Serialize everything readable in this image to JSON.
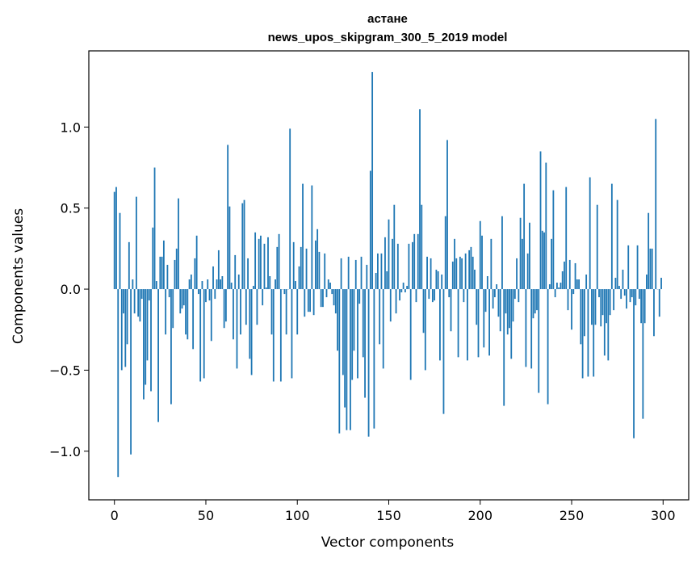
{
  "chart_data": {
    "type": "bar",
    "title": "астане",
    "subtitle": "news_upos_skipgram_300_5_2019 model",
    "xlabel": "Vector components",
    "ylabel": "Components values",
    "xlim": [
      -14,
      314
    ],
    "ylim": [
      -1.3,
      1.47
    ],
    "xticks": [
      0,
      50,
      100,
      150,
      200,
      250,
      300
    ],
    "xtick_labels": [
      "0",
      "50",
      "100",
      "150",
      "200",
      "250",
      "300"
    ],
    "yticks": [
      -1.0,
      -0.5,
      0.0,
      0.5,
      1.0
    ],
    "ytick_labels": [
      "−1.0",
      "−0.5",
      "0.0",
      "0.5",
      "1.0"
    ],
    "bar_color": "#1f77b4",
    "grid": false,
    "legend": "none",
    "values": [
      0.6,
      0.63,
      -1.16,
      0.47,
      -0.5,
      -0.15,
      -0.48,
      -0.34,
      0.29,
      -1.02,
      0.06,
      -0.15,
      0.57,
      -0.17,
      -0.2,
      -0.06,
      -0.68,
      -0.59,
      -0.44,
      -0.07,
      -0.63,
      0.38,
      0.75,
      0.05,
      -0.82,
      0.2,
      0.2,
      0.3,
      -0.28,
      0.15,
      -0.05,
      -0.71,
      -0.24,
      0.18,
      0.25,
      0.56,
      -0.15,
      -0.12,
      -0.1,
      -0.28,
      -0.31,
      0.06,
      0.09,
      -0.37,
      0.19,
      0.33,
      -0.03,
      -0.57,
      0.05,
      -0.55,
      -0.08,
      0.06,
      -0.07,
      -0.32,
      0.14,
      -0.06,
      0.06,
      0.24,
      0.06,
      0.08,
      -0.24,
      -0.2,
      0.89,
      0.51,
      0.04,
      -0.31,
      0.21,
      -0.49,
      0.09,
      -0.28,
      0.53,
      0.55,
      -0.22,
      0.19,
      -0.43,
      -0.53,
      0.02,
      0.35,
      -0.22,
      0.31,
      0.33,
      -0.1,
      0.28,
      0.01,
      0.32,
      0.08,
      -0.28,
      -0.57,
      0.06,
      0.26,
      0.34,
      -0.57,
      0.0,
      -0.03,
      -0.28,
      0.0,
      0.99,
      -0.55,
      0.29,
      0.05,
      -0.28,
      0.14,
      0.26,
      0.65,
      -0.17,
      0.25,
      -0.14,
      -0.14,
      0.64,
      -0.16,
      0.3,
      0.37,
      0.23,
      -0.11,
      -0.11,
      0.22,
      -0.05,
      0.06,
      0.04,
      -0.03,
      -0.1,
      -0.15,
      -0.38,
      -0.89,
      0.19,
      -0.53,
      -0.73,
      -0.87,
      0.2,
      -0.87,
      -0.56,
      -0.38,
      0.18,
      -0.55,
      -0.09,
      0.2,
      -0.42,
      -0.67,
      0.15,
      -0.91,
      0.73,
      1.34,
      -0.86,
      0.1,
      0.22,
      -0.34,
      0.22,
      -0.49,
      0.32,
      0.11,
      0.43,
      -0.2,
      0.31,
      0.52,
      -0.15,
      0.28,
      -0.07,
      -0.02,
      0.04,
      -0.02,
      0.02,
      0.28,
      -0.56,
      0.29,
      0.34,
      -0.08,
      0.34,
      1.11,
      0.52,
      -0.27,
      -0.5,
      0.2,
      -0.06,
      0.19,
      -0.08,
      -0.07,
      0.12,
      0.11,
      -0.44,
      0.09,
      -0.77,
      0.45,
      0.92,
      -0.05,
      -0.26,
      0.17,
      0.31,
      0.19,
      -0.42,
      0.2,
      0.19,
      -0.08,
      0.22,
      -0.44,
      0.24,
      0.26,
      0.2,
      0.12,
      -0.22,
      -0.42,
      0.42,
      0.33,
      -0.36,
      -0.14,
      0.08,
      -0.41,
      0.31,
      -0.12,
      -0.05,
      0.03,
      -0.17,
      -0.26,
      0.45,
      -0.72,
      -0.15,
      -0.28,
      -0.24,
      -0.43,
      -0.2,
      -0.06,
      0.19,
      -0.08,
      0.44,
      0.31,
      0.65,
      -0.48,
      0.22,
      0.41,
      -0.49,
      -0.18,
      -0.15,
      -0.13,
      -0.64,
      0.85,
      0.36,
      0.35,
      0.78,
      -0.71,
      0.03,
      0.31,
      0.61,
      -0.05,
      0.04,
      0.01,
      0.04,
      0.11,
      0.17,
      0.63,
      -0.13,
      0.18,
      -0.25,
      -0.03,
      0.16,
      0.06,
      0.06,
      -0.34,
      -0.55,
      -0.29,
      0.09,
      -0.54,
      0.69,
      -0.22,
      -0.54,
      -0.22,
      0.52,
      -0.05,
      -0.23,
      -0.16,
      -0.41,
      -0.21,
      -0.44,
      -0.16,
      0.65,
      -0.13,
      0.07,
      0.55,
      0.02,
      -0.06,
      0.12,
      -0.04,
      -0.12,
      0.27,
      -0.08,
      -0.05,
      -0.92,
      -0.1,
      0.27,
      -0.06,
      -0.21,
      -0.8,
      -0.21,
      0.09,
      0.47,
      0.25,
      0.25,
      -0.29,
      1.05,
      0.0,
      -0.17,
      0.07
    ]
  }
}
